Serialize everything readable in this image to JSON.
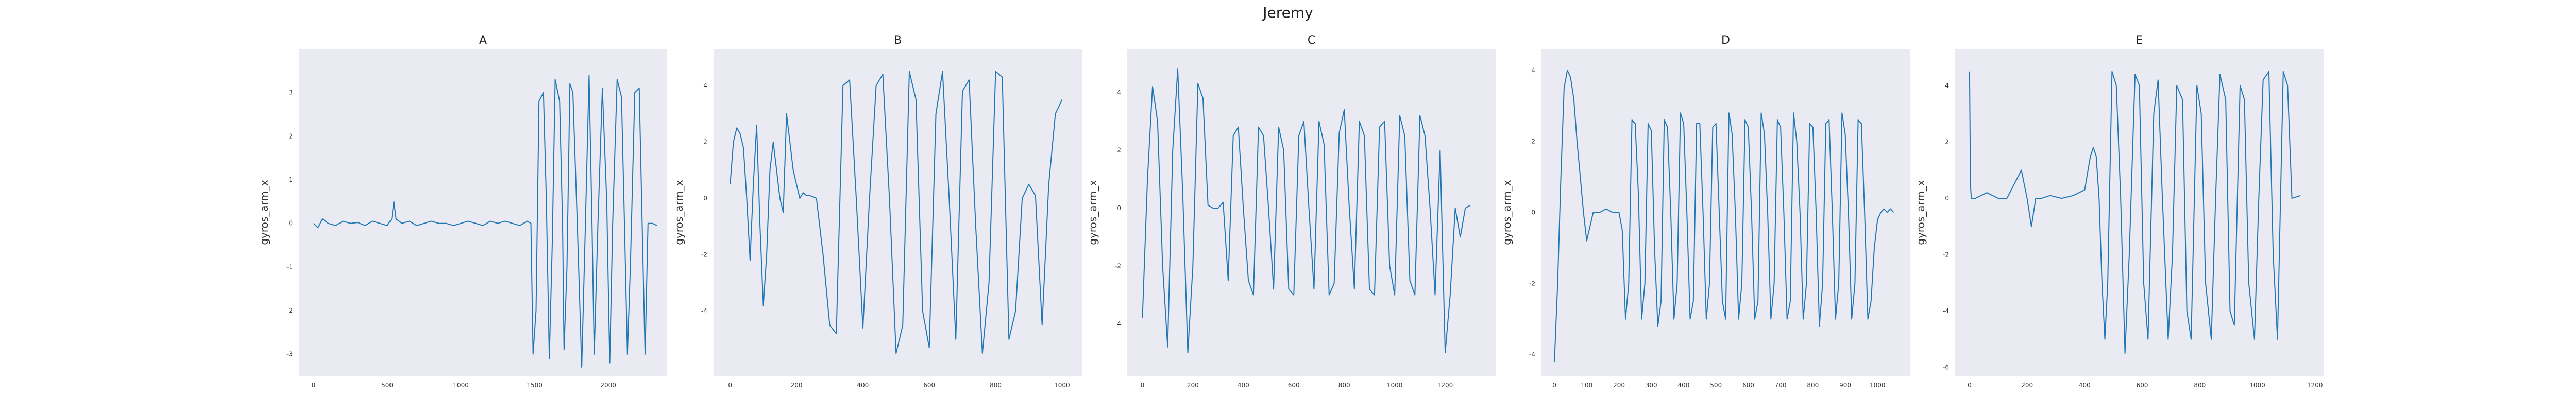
{
  "figure": {
    "title": "Jeremy"
  },
  "chart_data": [
    {
      "type": "line",
      "title": "A",
      "ylabel": "gyros_arm_x",
      "xlabel": "",
      "xlim": [
        -100,
        2400
      ],
      "ylim": [
        -3.5,
        4.0
      ],
      "xticks": [
        0,
        500,
        1000,
        1500,
        2000
      ],
      "yticks": [
        -3,
        -2,
        -1,
        0,
        1,
        2,
        3
      ],
      "grid": false,
      "color": "#1f77b4",
      "series": [
        {
          "x": [
            0,
            30,
            60,
            100,
            150,
            200,
            250,
            300,
            350,
            400,
            450,
            500,
            530,
            545,
            560,
            600,
            650,
            700,
            750,
            800,
            850,
            900,
            950,
            1000,
            1050,
            1100,
            1150,
            1200,
            1250,
            1300,
            1350,
            1400,
            1450,
            1475,
            1490,
            1510,
            1530,
            1560,
            1580,
            1600,
            1620,
            1640,
            1670,
            1690,
            1700,
            1720,
            1740,
            1760,
            1790,
            1820,
            1845,
            1870,
            1890,
            1905,
            1930,
            1960,
            1990,
            2010,
            2030,
            2060,
            2090,
            2110,
            2130,
            2150,
            2180,
            2210,
            2230,
            2250,
            2270,
            2300,
            2330
          ],
          "y": [
            0.0,
            -0.1,
            0.1,
            0.0,
            -0.05,
            0.05,
            0.0,
            0.02,
            -0.05,
            0.05,
            0.0,
            -0.05,
            0.1,
            0.5,
            0.1,
            0.0,
            0.05,
            -0.05,
            0.0,
            0.05,
            0.0,
            0.0,
            -0.05,
            0.0,
            0.05,
            0.0,
            -0.05,
            0.05,
            0.0,
            0.05,
            0.0,
            -0.05,
            0.05,
            0.0,
            -3.0,
            -2.0,
            2.8,
            3.0,
            0.5,
            -3.1,
            -0.5,
            3.3,
            2.8,
            0.0,
            -2.9,
            -1.0,
            3.2,
            3.0,
            0.0,
            -3.3,
            0.0,
            3.4,
            0.0,
            -3.0,
            0.0,
            3.1,
            0.5,
            -3.2,
            0.0,
            3.3,
            2.9,
            0.0,
            -3.0,
            -1.0,
            3.0,
            3.1,
            0.0,
            -3.0,
            0.0,
            0.0,
            -0.05
          ]
        }
      ]
    },
    {
      "type": "line",
      "title": "B",
      "ylabel": "gyros_arm_x",
      "xlabel": "",
      "xlim": [
        -50,
        1060
      ],
      "ylim": [
        -6.3,
        5.3
      ],
      "xticks": [
        0,
        200,
        400,
        600,
        800,
        1000
      ],
      "yticks": [
        -4,
        -2,
        0,
        2,
        4
      ],
      "grid": false,
      "color": "#1f77b4",
      "series": [
        {
          "x": [
            0,
            10,
            20,
            30,
            40,
            50,
            60,
            70,
            80,
            90,
            100,
            110,
            120,
            130,
            140,
            150,
            160,
            170,
            180,
            190,
            200,
            210,
            220,
            230,
            240,
            260,
            280,
            300,
            320,
            340,
            360,
            380,
            400,
            420,
            440,
            460,
            480,
            500,
            520,
            540,
            560,
            580,
            600,
            620,
            640,
            660,
            680,
            700,
            720,
            740,
            760,
            780,
            800,
            820,
            840,
            860,
            880,
            900,
            920,
            940,
            960,
            980,
            1000
          ],
          "y": [
            0.5,
            2.0,
            2.5,
            2.3,
            1.8,
            0.0,
            -2.2,
            0.5,
            2.6,
            -1.0,
            -3.8,
            -2.0,
            1.0,
            2.0,
            1.0,
            0.0,
            -0.5,
            3.0,
            2.0,
            1.0,
            0.5,
            0.0,
            0.2,
            0.1,
            0.1,
            0.0,
            -2.0,
            -4.5,
            -4.8,
            4.0,
            4.2,
            0.0,
            -4.6,
            0.0,
            4.0,
            4.4,
            0.0,
            -5.5,
            -4.5,
            4.5,
            3.5,
            -4.0,
            -5.3,
            3.0,
            4.5,
            0.0,
            -5.0,
            3.8,
            4.2,
            -1.0,
            -5.5,
            -3.0,
            4.5,
            4.3,
            -5.0,
            -4.0,
            0.0,
            0.5,
            0.1,
            -4.5,
            0.5,
            3.0,
            3.5
          ]
        }
      ]
    },
    {
      "type": "line",
      "title": "C",
      "ylabel": "gyros_arm_x",
      "xlabel": "",
      "xlim": [
        -60,
        1400
      ],
      "ylim": [
        -5.8,
        5.5
      ],
      "xticks": [
        0,
        200,
        400,
        600,
        800,
        1000,
        1200
      ],
      "yticks": [
        -4,
        -2,
        0,
        2,
        4
      ],
      "grid": false,
      "color": "#1f77b4",
      "series": [
        {
          "x": [
            0,
            20,
            40,
            60,
            80,
            100,
            120,
            140,
            160,
            180,
            200,
            220,
            240,
            260,
            280,
            300,
            320,
            340,
            360,
            380,
            400,
            420,
            440,
            460,
            480,
            500,
            520,
            540,
            560,
            580,
            600,
            620,
            640,
            660,
            680,
            700,
            720,
            740,
            760,
            780,
            800,
            820,
            840,
            860,
            880,
            900,
            920,
            940,
            960,
            980,
            1000,
            1020,
            1040,
            1060,
            1080,
            1100,
            1120,
            1140,
            1160,
            1180,
            1200,
            1220,
            1240,
            1260,
            1280,
            1300
          ],
          "y": [
            -3.8,
            1.0,
            4.2,
            3.0,
            -2.0,
            -4.8,
            2.0,
            4.8,
            0.5,
            -5.0,
            -2.0,
            4.3,
            3.8,
            0.1,
            0.0,
            0.0,
            0.2,
            -2.5,
            2.5,
            2.8,
            0.0,
            -2.5,
            -3.0,
            2.8,
            2.5,
            0.0,
            -2.8,
            2.8,
            2.0,
            -2.8,
            -3.0,
            2.5,
            3.0,
            0.0,
            -2.8,
            3.0,
            2.2,
            -3.0,
            -2.6,
            2.6,
            3.4,
            0.0,
            -2.8,
            3.0,
            2.5,
            -2.8,
            -3.0,
            2.8,
            3.0,
            -2.0,
            -3.0,
            3.2,
            2.5,
            -2.5,
            -3.0,
            3.2,
            2.5,
            0.0,
            -3.0,
            2.0,
            -5.0,
            -3.0,
            0.0,
            -1.0,
            0.0,
            0.1
          ]
        }
      ]
    },
    {
      "type": "line",
      "title": "D",
      "ylabel": "gyros_arm_x",
      "xlabel": "",
      "xlim": [
        -40,
        1100
      ],
      "ylim": [
        -4.6,
        4.6
      ],
      "xticks": [
        0,
        100,
        200,
        300,
        400,
        500,
        600,
        700,
        800,
        900,
        1000
      ],
      "yticks": [
        -4,
        -2,
        0,
        2,
        4
      ],
      "grid": false,
      "color": "#1f77b4",
      "series": [
        {
          "x": [
            0,
            10,
            20,
            30,
            40,
            50,
            60,
            70,
            80,
            90,
            100,
            120,
            140,
            160,
            180,
            200,
            210,
            220,
            230,
            240,
            250,
            260,
            270,
            280,
            290,
            300,
            310,
            320,
            330,
            340,
            350,
            360,
            370,
            380,
            390,
            400,
            410,
            420,
            430,
            440,
            450,
            460,
            470,
            480,
            490,
            500,
            510,
            520,
            530,
            540,
            550,
            560,
            570,
            580,
            590,
            600,
            610,
            620,
            630,
            640,
            650,
            660,
            670,
            680,
            690,
            700,
            710,
            720,
            730,
            740,
            750,
            760,
            770,
            780,
            790,
            800,
            810,
            820,
            830,
            840,
            850,
            860,
            870,
            880,
            890,
            900,
            910,
            920,
            930,
            940,
            950,
            960,
            970,
            980,
            990,
            1000,
            1010,
            1020,
            1030,
            1040,
            1050
          ],
          "y": [
            -4.2,
            -2.0,
            1.0,
            3.5,
            4.0,
            3.8,
            3.2,
            2.0,
            1.0,
            0.0,
            -0.8,
            0.0,
            0.0,
            0.1,
            0.0,
            0.0,
            -0.5,
            -3.0,
            -2.0,
            2.6,
            2.5,
            0.5,
            -3.0,
            -2.0,
            2.5,
            2.3,
            -1.0,
            -3.2,
            -2.5,
            2.6,
            2.4,
            0.0,
            -3.0,
            -2.0,
            2.8,
            2.5,
            0.0,
            -3.0,
            -2.5,
            2.5,
            2.5,
            0.0,
            -3.0,
            -2.0,
            2.4,
            2.5,
            0.0,
            -2.5,
            -3.0,
            2.8,
            2.2,
            0.0,
            -3.0,
            -2.0,
            2.6,
            2.4,
            0.0,
            -3.0,
            -2.5,
            2.8,
            2.2,
            0.0,
            -3.0,
            -2.0,
            2.6,
            2.4,
            0.0,
            -3.0,
            -2.5,
            2.8,
            2.0,
            0.0,
            -3.0,
            -2.0,
            2.5,
            2.4,
            0.0,
            -3.2,
            -2.0,
            2.5,
            2.6,
            0.0,
            -3.0,
            -2.0,
            2.8,
            2.2,
            0.0,
            -3.0,
            -2.0,
            2.6,
            2.5,
            0.0,
            -3.0,
            -2.5,
            -1.0,
            -0.2,
            0.0,
            0.1,
            0.0,
            0.1,
            0.0
          ]
        }
      ]
    },
    {
      "type": "line",
      "title": "E",
      "ylabel": "gyros_arm_x",
      "xlabel": "",
      "xlim": [
        -50,
        1230
      ],
      "ylim": [
        -6.3,
        5.3
      ],
      "xticks": [
        0,
        200,
        400,
        600,
        800,
        1000,
        1200
      ],
      "yticks": [
        -6,
        -4,
        -2,
        0,
        2,
        4
      ],
      "grid": false,
      "color": "#1f77b4",
      "series": [
        {
          "x": [
            0,
            3,
            6,
            20,
            60,
            100,
            130,
            160,
            180,
            200,
            215,
            230,
            250,
            280,
            320,
            360,
            400,
            420,
            430,
            440,
            450,
            460,
            470,
            480,
            495,
            510,
            525,
            540,
            555,
            575,
            590,
            605,
            620,
            640,
            655,
            670,
            690,
            705,
            720,
            740,
            755,
            770,
            790,
            805,
            820,
            840,
            855,
            870,
            890,
            905,
            920,
            940,
            955,
            970,
            990,
            1005,
            1020,
            1040,
            1055,
            1070,
            1090,
            1105,
            1120,
            1150
          ],
          "y": [
            4.5,
            0.5,
            0.0,
            0.0,
            0.2,
            0.0,
            0.0,
            0.6,
            1.0,
            0.0,
            -1.0,
            0.0,
            0.0,
            0.1,
            0.0,
            0.1,
            0.3,
            1.5,
            1.8,
            1.5,
            0.0,
            -3.0,
            -5.0,
            -3.0,
            4.5,
            4.0,
            0.0,
            -5.5,
            -2.0,
            4.4,
            4.0,
            -3.0,
            -5.0,
            3.0,
            4.2,
            0.0,
            -5.0,
            -2.0,
            4.0,
            3.5,
            -4.0,
            -5.0,
            4.0,
            3.0,
            -3.0,
            -5.0,
            0.0,
            4.4,
            3.5,
            -4.0,
            -4.5,
            4.0,
            3.5,
            -3.0,
            -5.0,
            0.0,
            4.2,
            4.5,
            -2.0,
            -5.0,
            4.5,
            4.0,
            0.0,
            0.1
          ]
        }
      ]
    }
  ]
}
